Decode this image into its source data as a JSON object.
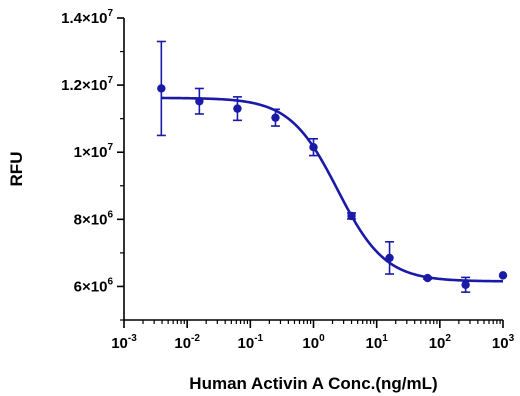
{
  "chart_data": {
    "type": "scatter",
    "title": "",
    "xlabel": "Human Activin A Conc.(ng/mL)",
    "ylabel": "RFU",
    "xscale": "log",
    "xlim": [
      0.001,
      1000
    ],
    "ylim": [
      5000000,
      14000000
    ],
    "x_ticks": [
      {
        "value": 0.001,
        "base": "10",
        "exp": "-3"
      },
      {
        "value": 0.01,
        "base": "10",
        "exp": "-2"
      },
      {
        "value": 0.1,
        "base": "10",
        "exp": "-1"
      },
      {
        "value": 1,
        "base": "10",
        "exp": "0"
      },
      {
        "value": 10,
        "base": "10",
        "exp": "1"
      },
      {
        "value": 100,
        "base": "10",
        "exp": "2"
      },
      {
        "value": 1000,
        "base": "10",
        "exp": "3"
      }
    ],
    "y_ticks": [
      {
        "value": 6000000,
        "mant": "6",
        "base": "×10",
        "exp": "6"
      },
      {
        "value": 8000000,
        "mant": "8",
        "base": "×10",
        "exp": "6"
      },
      {
        "value": 10000000,
        "mant": "1",
        "base": "×10",
        "exp": "7"
      },
      {
        "value": 12000000,
        "mant": "1.2",
        "base": "×10",
        "exp": "7"
      },
      {
        "value": 14000000,
        "mant": "1.4",
        "base": "×10",
        "exp": "7"
      }
    ],
    "grid": false,
    "legend": "none",
    "color": "#1a1aa8",
    "series": [
      {
        "points": [
          {
            "x": 0.0039,
            "y": 11900000,
            "err": 1400000
          },
          {
            "x": 0.0156,
            "y": 11520000,
            "err": 380000
          },
          {
            "x": 0.0625,
            "y": 11300000,
            "err": 350000
          },
          {
            "x": 0.25,
            "y": 11030000,
            "err": 250000
          },
          {
            "x": 1,
            "y": 10150000,
            "err": 250000
          },
          {
            "x": 4,
            "y": 8100000,
            "err": 90000
          },
          {
            "x": 16,
            "y": 6850000,
            "err": 480000
          },
          {
            "x": 64,
            "y": 6250000,
            "err": 30000
          },
          {
            "x": 256,
            "y": 6050000,
            "err": 220000
          },
          {
            "x": 1000,
            "y": 6330000,
            "err": 0
          }
        ]
      }
    ],
    "fit": {
      "model": "4PL",
      "top": 11620000,
      "bottom": 6150000,
      "ec50": 2.4,
      "hill": 1.15,
      "x_range": [
        0.0039,
        1000
      ]
    }
  }
}
